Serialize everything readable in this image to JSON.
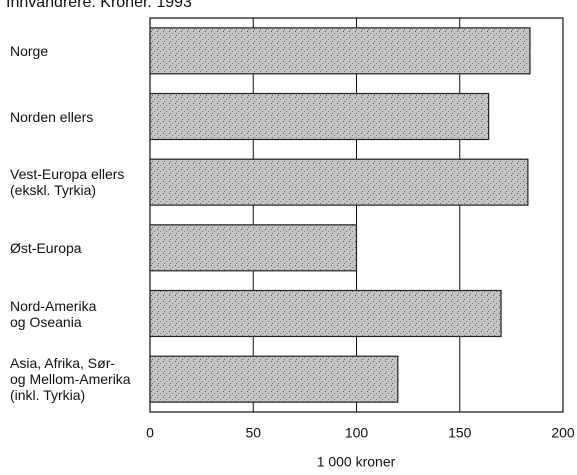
{
  "chart_data": {
    "type": "bar",
    "orientation": "horizontal",
    "title": "Innvandrere. Kroner. 1993",
    "categories": [
      "Norge",
      "Norden ellers",
      "Vest-Europa ellers\n(ekskl. Tyrkia)",
      "Øst-Europa",
      "Nord-Amerika\nog Oseania",
      "Asia, Afrika, Sør-\nog Mellom-Amerika\n(inkl. Tyrkia)"
    ],
    "values": [
      184,
      164,
      183,
      100,
      170,
      120
    ],
    "color": "#b8b8b8",
    "xlabel": "1 000 kroner",
    "xlim": [
      0,
      200
    ],
    "xticks": [
      0,
      50,
      100,
      150,
      200
    ],
    "grid": true
  }
}
